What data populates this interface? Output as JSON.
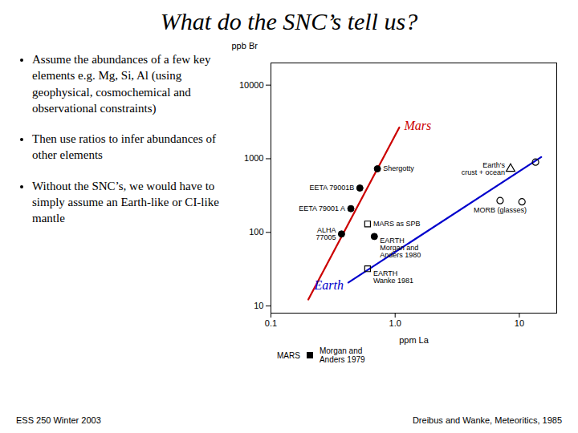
{
  "chart_data": {
    "type": "scatter",
    "title": "What do the SNC’s tell us?",
    "annotations": [
      "Assume the abundances of a few key elements e.g. Mg, Si, Al (using geophysical, cosmochemical and observational constraints)",
      "Then use ratios to infer abundances of other elements",
      "Without the SNC’s, we would have to simply assume an Earth-like or CI-like mantle"
    ],
    "footer": [
      "ESS 250 Winter 2003",
      "Dreibus and Wanke, Meteoritics, 1985"
    ],
    "x_label": "ppm La",
    "y_label": "ppb Br",
    "log": true,
    "grid": false,
    "xlim": [
      0.1,
      20
    ],
    "xticks": [
      0.1,
      {
        "value": 1,
        "label": "1.0"
      },
      10
    ],
    "ylim": [
      8,
      20000
    ],
    "yticks": [
      10,
      100,
      1000,
      10000
    ],
    "series": [
      {
        "name": "Mars",
        "type": "line",
        "color": "#cc0000",
        "x": [
          0.2,
          1.08
        ],
        "values": [
          12.25,
          2662
        ]
      },
      {
        "name": "Earth",
        "type": "line",
        "color": "#0000cc",
        "x": [
          0.42,
          15
        ],
        "values": [
          20.83,
          1053
        ]
      },
      {
        "type": "scatter",
        "marker": "circle",
        "color": "#000000",
        "x": [
          0.72,
          0.52,
          0.44,
          0.37,
          0.68
        ],
        "values": [
          730,
          400,
          210,
          95,
          88
        ],
        "labels": [
          "Shergotty",
          "EETA 79001B",
          "EETA 79001 A",
          "ALHA\n77005",
          "EARTH\nMorgan and\nAnders 1980"
        ]
      },
      {
        "type": "scatter",
        "marker": "open_square",
        "color": "#000000",
        "x": [
          0.6,
          0.6
        ],
        "values": [
          130,
          32
        ],
        "labels": [
          "MARS as SPB",
          "EARTH\nWanke 1981"
        ]
      },
      {
        "type": "scatter",
        "marker": "open_triangle",
        "color": "#000000",
        "x": [
          8.5
        ],
        "values": [
          730
        ],
        "labels": [
          "Earth's\ncrust + ocean"
        ]
      },
      {
        "type": "scatter",
        "marker": "open_circle",
        "color": "#000000",
        "x": [
          7,
          10.5,
          13.5
        ],
        "values": [
          270,
          260,
          900
        ],
        "labels": [
          "MORB (glasses)",
          null,
          null
        ]
      }
    ],
    "key": {
      "marker": "square",
      "color": "#000000",
      "texts": [
        "MARS",
        "Morgan and\nAnders 1979"
      ]
    }
  }
}
